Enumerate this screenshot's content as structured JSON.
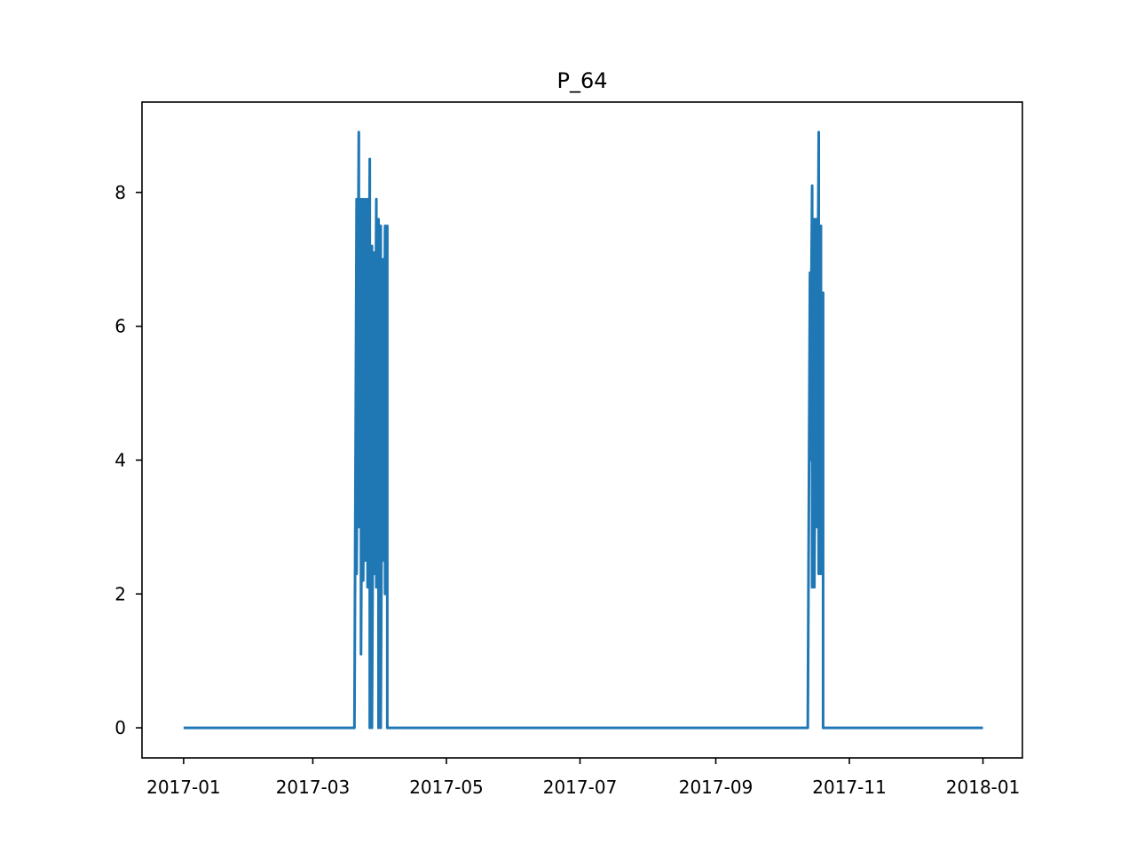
{
  "chart_data": {
    "type": "line",
    "title": "P_64",
    "xlabel": "",
    "ylabel": "",
    "xlim": [
      "2016-12-13",
      "2018-01-19"
    ],
    "ylim": [
      -0.45,
      9.35
    ],
    "grid": false,
    "line_color": "#1f77b4",
    "x_ticks": [
      "2017-01",
      "2017-03",
      "2017-05",
      "2017-07",
      "2017-09",
      "2017-11",
      "2018-01"
    ],
    "y_ticks": [
      0,
      2,
      4,
      6,
      8
    ],
    "series": [
      {
        "x": [
          "2017-01-01",
          "2017-03-20",
          "2017-03-21",
          "2017-03-21",
          "2017-03-22",
          "2017-03-22",
          "2017-03-23",
          "2017-03-23",
          "2017-03-24",
          "2017-03-24",
          "2017-03-25",
          "2017-03-25",
          "2017-03-26",
          "2017-03-26",
          "2017-03-27",
          "2017-03-27",
          "2017-03-28",
          "2017-03-28",
          "2017-03-29",
          "2017-03-29",
          "2017-03-30",
          "2017-03-30",
          "2017-03-31",
          "2017-03-31",
          "2017-04-01",
          "2017-04-01",
          "2017-04-02",
          "2017-04-02",
          "2017-04-03",
          "2017-04-03",
          "2017-04-04",
          "2017-04-04",
          "2017-04-05",
          "2017-10-13",
          "2017-10-14",
          "2017-10-14",
          "2017-10-15",
          "2017-10-15",
          "2017-10-16",
          "2017-10-16",
          "2017-10-17",
          "2017-10-17",
          "2017-10-18",
          "2017-10-18",
          "2017-10-19",
          "2017-10-19",
          "2017-10-20",
          "2017-10-20",
          "2017-10-21",
          "2018-01-01"
        ],
        "y": [
          0,
          0,
          7.9,
          2.3,
          8.9,
          3.0,
          7.9,
          1.1,
          7.9,
          2.2,
          7.9,
          2.5,
          7.9,
          2.1,
          8.5,
          0,
          7.2,
          0,
          7.1,
          2.3,
          7.9,
          2.1,
          7.6,
          0,
          7.5,
          0,
          7.0,
          2.5,
          7.5,
          2.0,
          7.5,
          0,
          0,
          0,
          6.8,
          4.0,
          8.1,
          2.1,
          7.6,
          2.1,
          7.6,
          3.0,
          8.9,
          2.3,
          7.5,
          2.3,
          6.5,
          0,
          0,
          0
        ]
      }
    ]
  }
}
